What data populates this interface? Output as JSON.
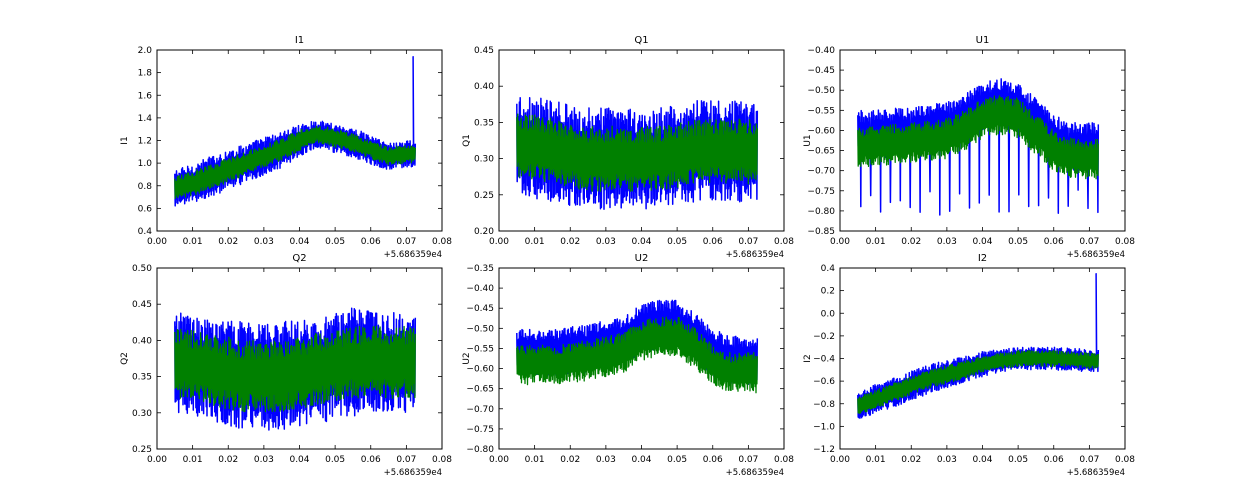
{
  "figure": {
    "background": "#ffffff",
    "series_colors": [
      "#0000ff",
      "#008000"
    ],
    "x_offset_label": "+5.686359e4"
  },
  "chart_data": [
    {
      "type": "line",
      "title": "I1",
      "xlabel": "",
      "ylabel": "I1",
      "xlim": [
        0.0,
        0.08
      ],
      "ylim": [
        0.4,
        2.0
      ],
      "xticks": [
        "0.00",
        "0.01",
        "0.02",
        "0.03",
        "0.04",
        "0.05",
        "0.06",
        "0.07",
        "0.08"
      ],
      "yticks": [
        "0.4",
        "0.6",
        "0.8",
        "1.0",
        "1.2",
        "1.4",
        "1.6",
        "1.8",
        "2.0"
      ],
      "x_offset": "+5.686359e4",
      "grid": false,
      "series": [
        {
          "color": "#0000ff",
          "x": [
            0.005,
            0.01,
            0.015,
            0.02,
            0.025,
            0.03,
            0.035,
            0.04,
            0.045,
            0.05,
            0.055,
            0.06,
            0.065,
            0.07,
            0.0725
          ],
          "center": [
            0.78,
            0.82,
            0.88,
            0.94,
            1.0,
            1.06,
            1.12,
            1.2,
            1.26,
            1.22,
            1.18,
            1.12,
            1.06,
            1.08,
            1.08
          ],
          "amp": [
            0.16,
            0.17,
            0.18,
            0.18,
            0.17,
            0.17,
            0.16,
            0.14,
            0.12,
            0.13,
            0.13,
            0.13,
            0.12,
            0.12,
            0.12
          ],
          "spike": {
            "x": 0.0719,
            "y": 1.94
          }
        },
        {
          "color": "#008000",
          "x": [
            0.005,
            0.01,
            0.015,
            0.02,
            0.025,
            0.03,
            0.035,
            0.04,
            0.045,
            0.05,
            0.055,
            0.06,
            0.065,
            0.07,
            0.0725
          ],
          "center": [
            0.78,
            0.82,
            0.88,
            0.94,
            1.0,
            1.06,
            1.12,
            1.2,
            1.26,
            1.22,
            1.18,
            1.12,
            1.06,
            1.08,
            1.08
          ],
          "amp": [
            0.1,
            0.11,
            0.11,
            0.11,
            0.1,
            0.1,
            0.1,
            0.09,
            0.08,
            0.08,
            0.08,
            0.08,
            0.08,
            0.08,
            0.08
          ]
        }
      ]
    },
    {
      "type": "line",
      "title": "Q1",
      "xlabel": "",
      "ylabel": "Q1",
      "xlim": [
        0.0,
        0.08
      ],
      "ylim": [
        0.2,
        0.45
      ],
      "xticks": [
        "0.00",
        "0.01",
        "0.02",
        "0.03",
        "0.04",
        "0.05",
        "0.06",
        "0.07",
        "0.08"
      ],
      "yticks": [
        "0.20",
        "0.25",
        "0.30",
        "0.35",
        "0.40",
        "0.45"
      ],
      "x_offset": "+5.686359e4",
      "grid": false,
      "series": [
        {
          "color": "#0000ff",
          "x": [
            0.005,
            0.015,
            0.025,
            0.035,
            0.045,
            0.055,
            0.065,
            0.0725
          ],
          "center": [
            0.32,
            0.31,
            0.3,
            0.3,
            0.3,
            0.31,
            0.31,
            0.31
          ],
          "amp": [
            0.07,
            0.07,
            0.07,
            0.07,
            0.07,
            0.07,
            0.07,
            0.07
          ]
        },
        {
          "color": "#008000",
          "x": [
            0.005,
            0.015,
            0.025,
            0.035,
            0.045,
            0.055,
            0.065,
            0.0725
          ],
          "center": [
            0.32,
            0.31,
            0.3,
            0.3,
            0.3,
            0.31,
            0.31,
            0.31
          ],
          "amp": [
            0.045,
            0.045,
            0.045,
            0.045,
            0.045,
            0.045,
            0.045,
            0.045
          ]
        }
      ]
    },
    {
      "type": "line",
      "title": "U1",
      "xlabel": "",
      "ylabel": "U1",
      "xlim": [
        0.0,
        0.08
      ],
      "ylim": [
        -0.85,
        -0.4
      ],
      "xticks": [
        "0.00",
        "0.01",
        "0.02",
        "0.03",
        "0.04",
        "0.05",
        "0.06",
        "0.07",
        "0.08"
      ],
      "yticks": [
        "−0.85",
        "−0.80",
        "−0.75",
        "−0.70",
        "−0.65",
        "−0.60",
        "−0.55",
        "−0.50",
        "−0.45",
        "−0.40"
      ],
      "x_offset": "+5.686359e4",
      "grid": false,
      "series": [
        {
          "color": "#0000ff",
          "x": [
            0.005,
            0.01,
            0.02,
            0.03,
            0.035,
            0.04,
            0.045,
            0.05,
            0.055,
            0.06,
            0.065,
            0.07,
            0.0725
          ],
          "center": [
            -0.61,
            -0.61,
            -0.6,
            -0.59,
            -0.57,
            -0.54,
            -0.53,
            -0.54,
            -0.58,
            -0.62,
            -0.64,
            -0.64,
            -0.64
          ],
          "amp": [
            0.06,
            0.06,
            0.06,
            0.06,
            0.06,
            0.06,
            0.06,
            0.06,
            0.06,
            0.06,
            0.06,
            0.06,
            0.06
          ],
          "dips": [
            -0.79,
            -0.76,
            -0.8
          ]
        },
        {
          "color": "#008000",
          "x": [
            0.005,
            0.01,
            0.02,
            0.03,
            0.035,
            0.04,
            0.045,
            0.05,
            0.055,
            0.06,
            0.065,
            0.07,
            0.0725
          ],
          "center": [
            -0.64,
            -0.64,
            -0.63,
            -0.62,
            -0.6,
            -0.57,
            -0.56,
            -0.57,
            -0.61,
            -0.65,
            -0.67,
            -0.67,
            -0.67
          ],
          "amp": [
            0.05,
            0.05,
            0.05,
            0.05,
            0.05,
            0.05,
            0.05,
            0.05,
            0.05,
            0.05,
            0.05,
            0.05,
            0.05
          ]
        }
      ]
    },
    {
      "type": "line",
      "title": "Q2",
      "xlabel": "",
      "ylabel": "Q2",
      "xlim": [
        0.0,
        0.08
      ],
      "ylim": [
        0.25,
        0.5
      ],
      "xticks": [
        "0.00",
        "0.01",
        "0.02",
        "0.03",
        "0.04",
        "0.05",
        "0.06",
        "0.07",
        "0.08"
      ],
      "yticks": [
        "0.25",
        "0.30",
        "0.35",
        "0.40",
        "0.45",
        "0.50"
      ],
      "x_offset": "+5.686359e4",
      "grid": false,
      "series": [
        {
          "color": "#0000ff",
          "x": [
            0.005,
            0.015,
            0.025,
            0.035,
            0.045,
            0.055,
            0.065,
            0.0725
          ],
          "center": [
            0.37,
            0.36,
            0.35,
            0.35,
            0.36,
            0.37,
            0.37,
            0.37
          ],
          "amp": [
            0.07,
            0.07,
            0.075,
            0.075,
            0.075,
            0.075,
            0.07,
            0.07
          ]
        },
        {
          "color": "#008000",
          "x": [
            0.005,
            0.015,
            0.025,
            0.035,
            0.045,
            0.055,
            0.065,
            0.0725
          ],
          "center": [
            0.37,
            0.36,
            0.35,
            0.35,
            0.36,
            0.37,
            0.37,
            0.37
          ],
          "amp": [
            0.05,
            0.05,
            0.05,
            0.05,
            0.05,
            0.05,
            0.05,
            0.05
          ]
        }
      ]
    },
    {
      "type": "line",
      "title": "U2",
      "xlabel": "",
      "ylabel": "U2",
      "xlim": [
        0.0,
        0.08
      ],
      "ylim": [
        -0.8,
        -0.35
      ],
      "xticks": [
        "0.00",
        "0.01",
        "0.02",
        "0.03",
        "0.04",
        "0.05",
        "0.06",
        "0.07",
        "0.08"
      ],
      "yticks": [
        "−0.80",
        "−0.75",
        "−0.70",
        "−0.65",
        "−0.60",
        "−0.55",
        "−0.50",
        "−0.45",
        "−0.40",
        "−0.35"
      ],
      "x_offset": "+5.686359e4",
      "grid": false,
      "series": [
        {
          "color": "#0000ff",
          "x": [
            0.005,
            0.015,
            0.025,
            0.035,
            0.04,
            0.045,
            0.05,
            0.055,
            0.06,
            0.065,
            0.07,
            0.0725
          ],
          "center": [
            -0.56,
            -0.56,
            -0.55,
            -0.53,
            -0.5,
            -0.49,
            -0.49,
            -0.52,
            -0.56,
            -0.58,
            -0.58,
            -0.58
          ],
          "amp": [
            0.06,
            0.06,
            0.06,
            0.06,
            0.06,
            0.06,
            0.06,
            0.06,
            0.06,
            0.06,
            0.06,
            0.06
          ]
        },
        {
          "color": "#008000",
          "x": [
            0.005,
            0.015,
            0.025,
            0.035,
            0.04,
            0.045,
            0.05,
            0.055,
            0.06,
            0.065,
            0.07,
            0.0725
          ],
          "center": [
            -0.59,
            -0.59,
            -0.58,
            -0.56,
            -0.53,
            -0.52,
            -0.52,
            -0.55,
            -0.59,
            -0.61,
            -0.61,
            -0.61
          ],
          "amp": [
            0.05,
            0.05,
            0.05,
            0.05,
            0.05,
            0.05,
            0.05,
            0.05,
            0.05,
            0.05,
            0.05,
            0.05
          ]
        }
      ]
    },
    {
      "type": "line",
      "title": "I2",
      "xlabel": "",
      "ylabel": "I2",
      "xlim": [
        0.0,
        0.08
      ],
      "ylim": [
        -1.2,
        0.4
      ],
      "xticks": [
        "0.00",
        "0.01",
        "0.02",
        "0.03",
        "0.04",
        "0.05",
        "0.06",
        "0.07",
        "0.08"
      ],
      "yticks": [
        "−1.2",
        "−1.0",
        "−0.8",
        "−0.6",
        "−0.4",
        "−0.2",
        "0.0",
        "0.2",
        "0.4"
      ],
      "x_offset": "+5.686359e4",
      "grid": false,
      "series": [
        {
          "color": "#0000ff",
          "x": [
            0.005,
            0.01,
            0.015,
            0.02,
            0.025,
            0.03,
            0.035,
            0.04,
            0.045,
            0.05,
            0.055,
            0.06,
            0.065,
            0.07,
            0.0725
          ],
          "center": [
            -0.82,
            -0.76,
            -0.7,
            -0.64,
            -0.58,
            -0.54,
            -0.5,
            -0.45,
            -0.42,
            -0.4,
            -0.4,
            -0.4,
            -0.41,
            -0.42,
            -0.42
          ],
          "amp": [
            0.12,
            0.13,
            0.13,
            0.13,
            0.13,
            0.12,
            0.12,
            0.11,
            0.1,
            0.1,
            0.1,
            0.1,
            0.1,
            0.1,
            0.1
          ],
          "spike": {
            "x": 0.0719,
            "y": 0.35
          }
        },
        {
          "color": "#008000",
          "x": [
            0.005,
            0.01,
            0.015,
            0.02,
            0.025,
            0.03,
            0.035,
            0.04,
            0.045,
            0.05,
            0.055,
            0.06,
            0.065,
            0.07,
            0.0725
          ],
          "center": [
            -0.82,
            -0.76,
            -0.7,
            -0.64,
            -0.58,
            -0.54,
            -0.5,
            -0.45,
            -0.42,
            -0.4,
            -0.4,
            -0.4,
            -0.41,
            -0.42,
            -0.42
          ],
          "amp": [
            0.08,
            0.08,
            0.08,
            0.08,
            0.08,
            0.08,
            0.08,
            0.07,
            0.07,
            0.07,
            0.07,
            0.07,
            0.07,
            0.07,
            0.07
          ]
        }
      ]
    }
  ]
}
